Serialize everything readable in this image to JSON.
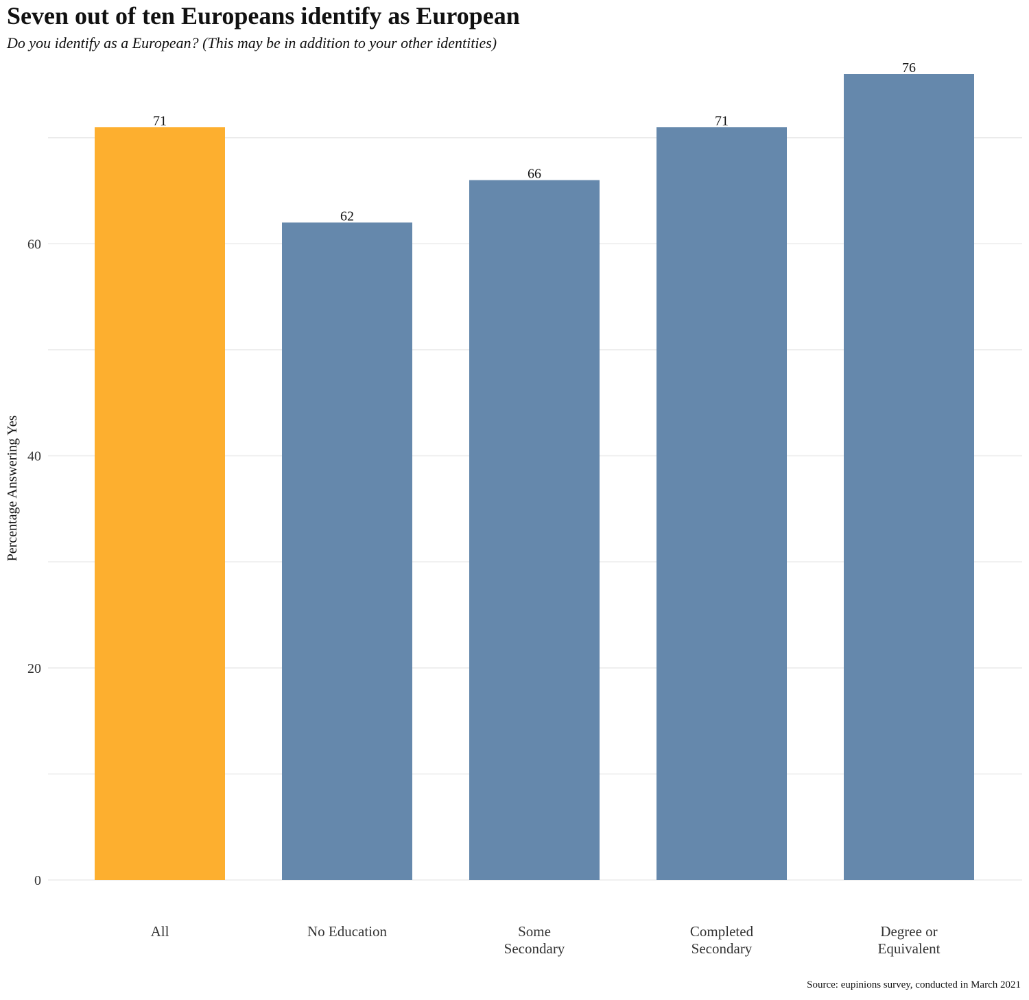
{
  "header": {
    "title": "Seven out of ten Europeans identify as European",
    "subtitle": "Do you identify as a European? (This may be in addition to your other identities)"
  },
  "footer": {
    "source": "Source: eupinions survey, conducted in March 2021"
  },
  "chart_data": {
    "type": "bar",
    "title": "Seven out of ten Europeans identify as European",
    "subtitle": "Do you identify as a European? (This may be in addition to your other identities)",
    "xlabel": "",
    "ylabel": "Percentage Answering Yes",
    "categories": [
      [
        "All"
      ],
      [
        "No Education"
      ],
      [
        "Some",
        "Secondary"
      ],
      [
        "Completed",
        "Secondary"
      ],
      [
        "Degree or",
        "Equivalent"
      ]
    ],
    "values": [
      71,
      62,
      66,
      71,
      76
    ],
    "value_labels": [
      "71",
      "62",
      "66",
      "71",
      "76"
    ],
    "highlight_index": 0,
    "colors": {
      "highlight": "#FDAF2F",
      "bar": "#6588AC",
      "grid": "#EBEBEB",
      "text": "#111111"
    },
    "ylim": [
      0,
      76
    ],
    "yticks": [
      0,
      20,
      40,
      60
    ],
    "minor_yticks": [
      10,
      30,
      50,
      70
    ],
    "grid": true,
    "legend": "none"
  }
}
